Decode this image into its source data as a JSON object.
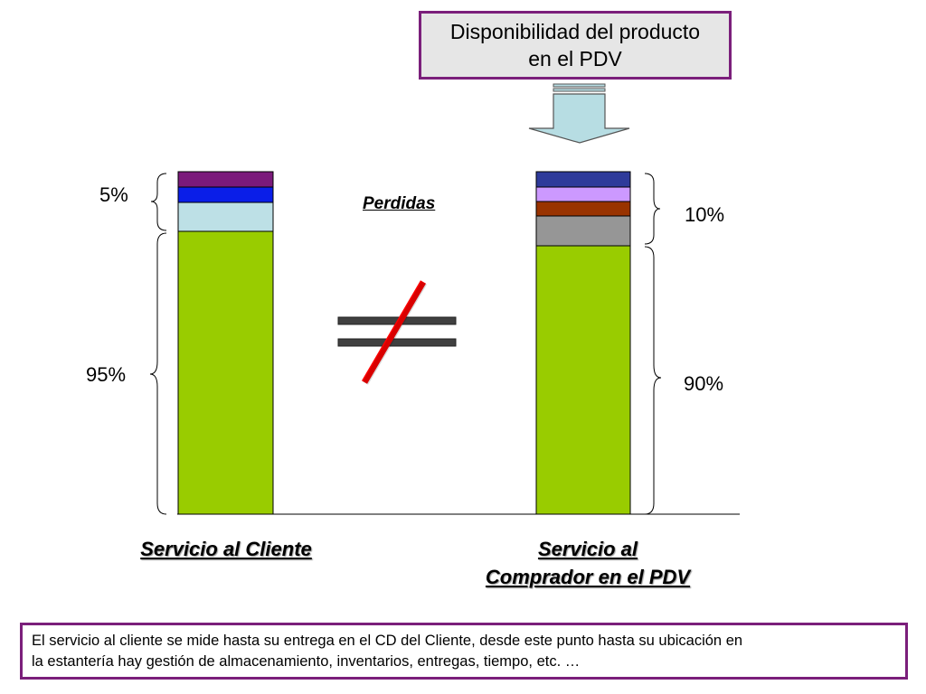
{
  "top_box": {
    "line1": "Disponibilidad del producto",
    "line2": "en el PDV"
  },
  "losses_label": "Perdidas",
  "left_bar": {
    "label": "Servicio al Cliente",
    "top_pct": "5%",
    "bottom_pct": "95%",
    "segment_colors": [
      "#7b1a7b",
      "#0a1ee8",
      "#bde0e6",
      "#99cc00"
    ]
  },
  "right_bar": {
    "label_line1": "Servicio al",
    "label_line2": "Comprador en el PDV",
    "top_pct": "10%",
    "bottom_pct": "90%",
    "segment_colors": [
      "#2e3a9a",
      "#cc99ff",
      "#993300",
      "#969696",
      "#99cc00"
    ]
  },
  "note": {
    "line1": "El servicio al cliente se mide hasta su entrega en el CD del Cliente,  desde este punto hasta su ubicación en",
    "line2": "la estantería hay gestión de almacenamiento, inventarios, entregas, tiempo, etc. …"
  },
  "colors": {
    "frame": "#7b1f7b",
    "arrow": "#b7dde3",
    "not_equal_slash": "#ff0000",
    "equal_bars": "#404040"
  }
}
